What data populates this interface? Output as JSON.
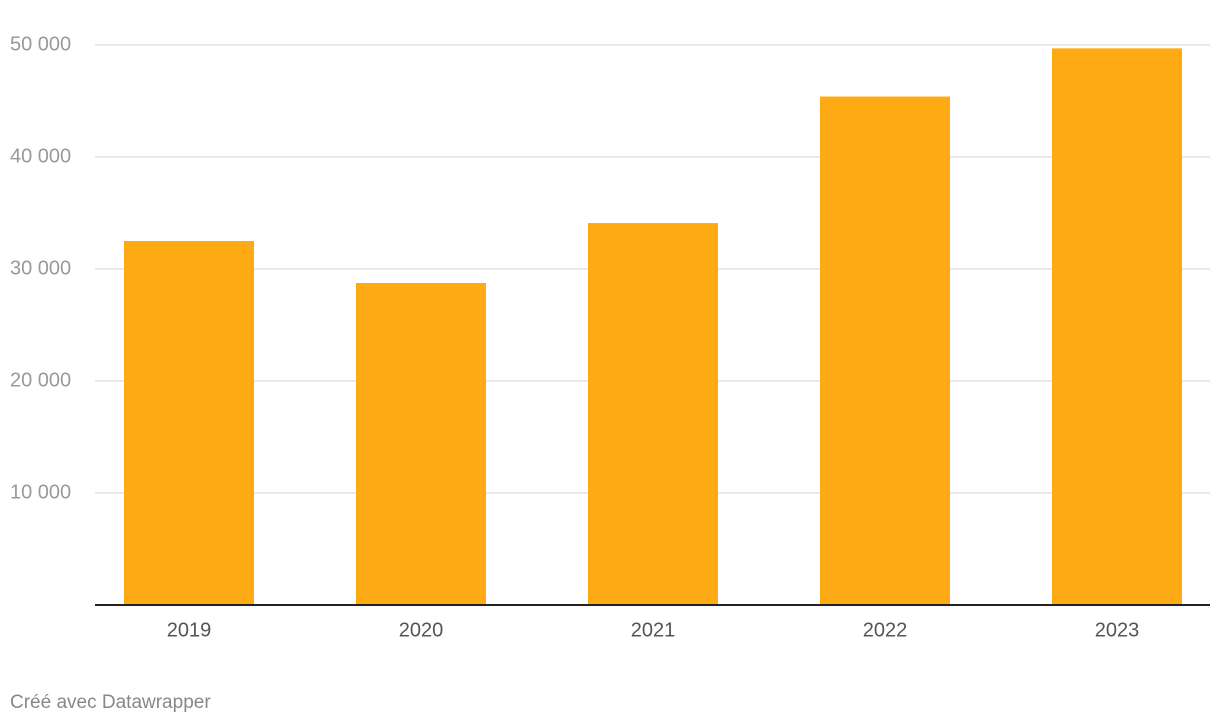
{
  "chart_data": {
    "type": "bar",
    "categories": [
      "2019",
      "2020",
      "2021",
      "2022",
      "2023"
    ],
    "values": [
      32500,
      28750,
      34100,
      45400,
      49700
    ],
    "color": "#fdaa15",
    "ylim": [
      0,
      50000
    ],
    "yticks": [
      {
        "value": 10000,
        "label": "10 000"
      },
      {
        "value": 20000,
        "label": "20 000"
      },
      {
        "value": 30000,
        "label": "30 000"
      },
      {
        "value": 40000,
        "label": "40 000"
      },
      {
        "value": 50000,
        "label": "50 000"
      }
    ],
    "grid": true,
    "credit": "Créé avec Datawrapper"
  }
}
